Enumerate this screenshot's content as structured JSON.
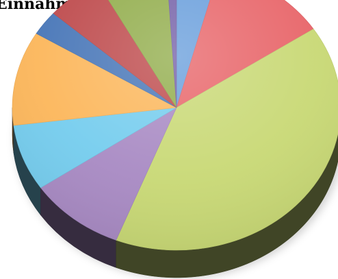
{
  "chart_data": {
    "type": "pie",
    "title": "Einnahmen:",
    "style": "3d",
    "start_angle_deg": 90,
    "direction": "clockwise",
    "slices": [
      {
        "value": 4.2,
        "color": "#6a9fdc"
      },
      {
        "value": 11.5,
        "color": "#e8666a"
      },
      {
        "value": 40.3,
        "color": "#c9d976"
      },
      {
        "value": 9.5,
        "color": "#a98bc4"
      },
      {
        "value": 7.5,
        "color": "#76cdee"
      },
      {
        "value": 10.7,
        "color": "#fcb75c"
      },
      {
        "value": 2.8,
        "color": "#4977b8"
      },
      {
        "value": 5.5,
        "color": "#be4b4d"
      },
      {
        "value": 7.0,
        "color": "#92ad4c"
      },
      {
        "value": 1.0,
        "color": "#7561a8"
      }
    ]
  }
}
